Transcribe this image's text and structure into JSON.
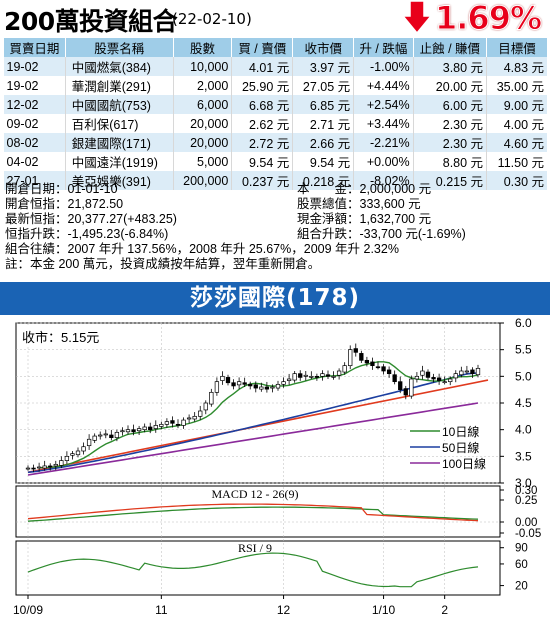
{
  "header": {
    "title": "200萬投資組合",
    "date": "(22-02-10)",
    "change_pct": "1.69%",
    "colors": {
      "down": "#e8001a",
      "table_header": "#9fcde8",
      "banner": "#1a63b4"
    }
  },
  "table": {
    "headers": [
      "買賣日期",
      "股票名稱",
      "股數",
      "買 / 賣價",
      "收市價",
      "升 / 跌幅",
      "止蝕 / 賺價",
      "目標價"
    ],
    "rows": [
      [
        "19-02",
        "中國燃氣(384)",
        "10,000",
        "4.01 元",
        "3.97 元",
        "-1.00%",
        "3.80 元",
        "4.83 元"
      ],
      [
        "19-02",
        "華潤創業(291)",
        "2,000",
        "25.90 元",
        "27.05 元",
        "+4.44%",
        "20.00 元",
        "35.00 元"
      ],
      [
        "12-02",
        "中國國航(753)",
        "6,000",
        "6.68 元",
        "6.85 元",
        "+2.54%",
        "6.00 元",
        "9.00 元"
      ],
      [
        "09-02",
        "百利保(617)",
        "20,000",
        "2.62 元",
        "2.71 元",
        "+3.44%",
        "2.30 元",
        "4.00 元"
      ],
      [
        "08-02",
        "銀建國際(171)",
        "20,000",
        "2.72 元",
        "2.66 元",
        "-2.21%",
        "2.30 元",
        "4.60 元"
      ],
      [
        "04-02",
        "中國遠洋(1919)",
        "5,000",
        "9.54 元",
        "9.54 元",
        "+0.00%",
        "8.80 元",
        "11.50 元"
      ],
      [
        "27-01",
        "美亞娛樂(391)",
        "200,000",
        "0.237 元",
        "0.218 元",
        "-8.02%",
        "0.215 元",
        "0.30 元"
      ]
    ]
  },
  "summary": {
    "open_date": "開倉日期：01-01-10",
    "capital": "本　　金：2,000,000 元",
    "open_hsi": "開倉恒指：21,872.50",
    "stock_value": "股票總值：333,600 元",
    "latest_hsi": "最新恒指：20,377.27(+483.25)",
    "cash": "現金淨額：1,632,700 元",
    "hsi_change": "恒指升跌：-1,495.23(-6.84%)",
    "portfolio_change": "組合升跌：-33,700 元(-1.69%)",
    "history": "組合往績：2007 年升 137.56%，2008 年升 25.67%，2009 年升 2.32%",
    "note": "註：本金 200 萬元，投資成績按年結算，翌年重新開倉。"
  },
  "banner": {
    "title": "莎莎國際(178)"
  },
  "chart_data": {
    "type": "candlestick",
    "close_label": "收市：5.15元",
    "x_tick_labels": [
      "10/09",
      "11",
      "12",
      "1/10",
      "2"
    ],
    "price_panel": {
      "ylim": [
        3.0,
        6.0
      ],
      "y_ticks": [
        "6.0",
        "5.5",
        "5.0",
        "4.5",
        "4.0",
        "3.5",
        "3.0"
      ],
      "legend": [
        "10日線",
        "50日線",
        "100日線"
      ],
      "series_colors": {
        "ma10": "#2e8b2e",
        "ma50": "#1c3fa0",
        "ma100": "#8a2a9a",
        "trend": "#e03a1e"
      },
      "trendline": {
        "from": 3.2,
        "to": 4.93
      },
      "close_series": [
        3.28,
        3.27,
        3.3,
        3.32,
        3.3,
        3.35,
        3.42,
        3.5,
        3.55,
        3.6,
        3.68,
        3.82,
        3.88,
        3.9,
        3.92,
        3.85,
        3.95,
        3.98,
        4.0,
        3.96,
        4.02,
        4.05,
        4.0,
        4.08,
        4.1,
        4.15,
        4.12,
        4.08,
        4.18,
        4.22,
        4.25,
        4.35,
        4.5,
        4.7,
        4.9,
        5.0,
        4.88,
        4.82,
        4.9,
        4.85,
        4.82,
        4.78,
        4.8,
        4.76,
        4.8,
        4.85,
        4.9,
        4.95,
        5.05,
        4.98,
        5.02,
        5.0,
        4.98,
        5.05,
        5.0,
        5.0,
        5.1,
        5.2,
        5.5,
        5.45,
        5.3,
        5.25,
        5.2,
        5.18,
        5.1,
        5.05,
        4.9,
        4.75,
        4.65,
        4.95,
        5.0,
        5.1,
        4.98,
        4.95,
        4.92,
        4.9,
        4.95,
        5.05,
        5.1,
        5.1,
        5.05,
        5.15
      ]
    },
    "macd_panel": {
      "title": "MACD 12 - 26(9)",
      "y_ticks": [
        "0.30",
        "0.25",
        "0.00",
        "-0.05"
      ]
    },
    "rsi_panel": {
      "title": "RSI / 9",
      "y_ticks": [
        "90",
        "60",
        "20"
      ]
    }
  }
}
